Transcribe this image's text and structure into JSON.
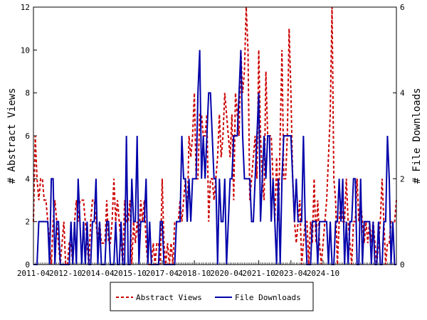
{
  "chart_data": {
    "type": "line",
    "xlabel": "",
    "ylabel": "# Abstract Views",
    "y2label": "# File Downloads",
    "ylim": [
      0,
      12
    ],
    "y2lim": [
      0,
      6
    ],
    "y_ticks": [
      0,
      2,
      4,
      6,
      8,
      10,
      12
    ],
    "y2_ticks": [
      0,
      2,
      4,
      6
    ],
    "x_tick_labels": [
      "2011-04",
      "2012-10",
      "2014-04",
      "2015-10",
      "2017-04",
      "2018-10",
      "2020-04",
      "2021-10",
      "2023-04",
      "2024-10"
    ],
    "x_start": "2011-04",
    "legend": {
      "position": "bottom-center",
      "entries": [
        "Abstract Views",
        "File Downloads"
      ]
    },
    "grid": false,
    "series": [
      {
        "name": "Abstract Views",
        "axis": "left",
        "color": "#cc0000",
        "style": "dashed",
        "values": [
          2,
          6,
          4,
          3,
          4,
          4,
          3,
          3,
          2,
          1,
          0,
          2,
          3,
          2,
          1,
          0,
          1,
          2,
          0,
          0,
          1,
          1,
          0,
          2,
          3,
          2,
          3,
          3,
          3,
          2,
          1,
          0,
          2,
          3,
          3,
          2,
          1,
          2,
          1,
          1,
          1,
          3,
          1,
          1,
          2,
          4,
          2,
          3,
          2,
          1,
          0,
          3,
          2,
          2,
          3,
          0,
          2,
          1,
          2,
          1,
          3,
          2,
          3,
          1,
          0,
          0,
          0,
          1,
          0,
          1,
          1,
          0,
          4,
          1,
          0,
          1,
          0,
          1,
          0,
          2,
          2,
          2,
          3,
          2,
          3,
          4,
          2,
          6,
          5,
          6,
          8,
          4,
          4,
          7,
          7,
          6,
          6,
          7,
          2,
          4,
          4,
          3,
          4,
          5,
          7,
          5,
          6,
          8,
          7,
          6,
          5,
          7,
          3,
          8,
          7,
          6,
          10,
          8,
          9,
          12,
          10,
          3,
          4,
          5,
          6,
          4,
          10,
          6,
          4,
          3,
          9,
          6,
          6,
          6,
          4,
          2,
          5,
          2,
          6,
          10,
          4,
          4,
          6,
          11,
          8,
          4,
          2,
          1,
          2,
          3,
          0,
          1,
          2,
          2,
          0,
          2,
          1,
          4,
          1,
          3,
          1,
          0,
          1,
          2,
          3,
          5,
          7,
          12,
          4,
          3,
          0,
          2,
          3,
          2,
          2,
          4,
          2,
          1,
          0,
          2,
          2,
          4,
          2,
          3,
          2,
          1,
          2,
          1,
          2,
          1,
          2,
          1,
          0,
          1,
          2,
          4,
          2,
          0,
          1,
          1,
          2,
          2,
          2,
          3
        ]
      },
      {
        "name": "File Downloads",
        "axis": "right",
        "color": "#0000aa",
        "style": "solid",
        "values": [
          0,
          0,
          0,
          1,
          1,
          1,
          1,
          1,
          1,
          0,
          2,
          2,
          0,
          1,
          1,
          0,
          0,
          0,
          0,
          0,
          0,
          1,
          0,
          1,
          0,
          2,
          1,
          0,
          1,
          0,
          1,
          0,
          0,
          1,
          1,
          2,
          0,
          1,
          0,
          0,
          0,
          1,
          1,
          0,
          0,
          0,
          1,
          0,
          0,
          1,
          0,
          0,
          3,
          0,
          0,
          2,
          1,
          1,
          3,
          0,
          1,
          1,
          1,
          2,
          0,
          1,
          0,
          0,
          0,
          0,
          0,
          1,
          1,
          0,
          0,
          0,
          0,
          0,
          0,
          0,
          1,
          1,
          1,
          3,
          2,
          2,
          1,
          2,
          1,
          2,
          2,
          2,
          4,
          5,
          2,
          3,
          2,
          3,
          4,
          4,
          3,
          2,
          2,
          0,
          2,
          1,
          1,
          2,
          0,
          1,
          2,
          2,
          3,
          3,
          3,
          4,
          5,
          3,
          2,
          2,
          2,
          2,
          1,
          1,
          2,
          3,
          4,
          1,
          2,
          3,
          2,
          3,
          3,
          1,
          2,
          1,
          0,
          2,
          0,
          2,
          3,
          3,
          3,
          3,
          3,
          2,
          1,
          2,
          1,
          1,
          1,
          3,
          1,
          0,
          0,
          0,
          1,
          1,
          1,
          0,
          1,
          1,
          1,
          1,
          1,
          0,
          1,
          0,
          0,
          1,
          1,
          2,
          1,
          2,
          0,
          1,
          0,
          1,
          1,
          2,
          2,
          0,
          0,
          2,
          0,
          1,
          1,
          1,
          1,
          0,
          1,
          0,
          0,
          1,
          0,
          0,
          1,
          1,
          3,
          2,
          0,
          1,
          0,
          0
        ]
      }
    ]
  }
}
